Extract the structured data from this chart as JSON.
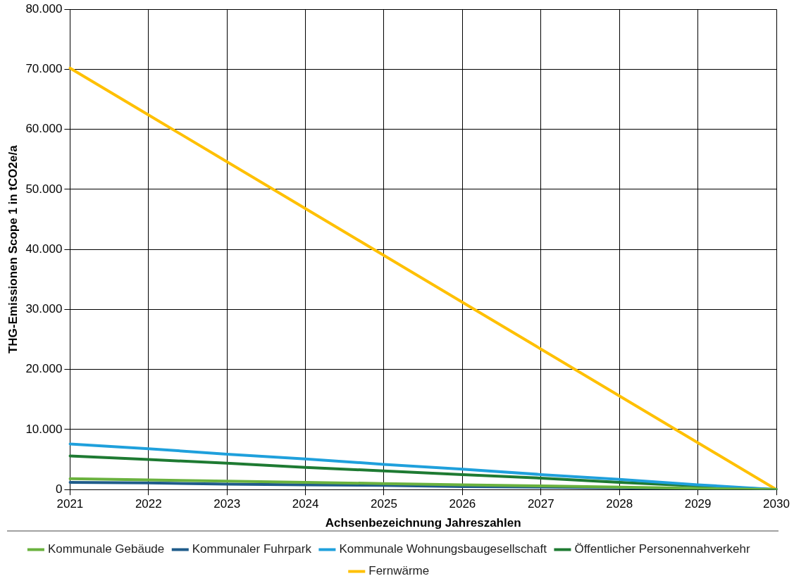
{
  "chart_data": {
    "type": "line",
    "xlabel": "Achsenbezeichnung Jahreszahlen",
    "ylabel": "THG-Emissionen Scope 1 in tCO2e/a",
    "categories": [
      "2021",
      "2022",
      "2023",
      "2024",
      "2025",
      "2026",
      "2027",
      "2028",
      "2029",
      "2030"
    ],
    "series": [
      {
        "name": "Kommunale Gebäude",
        "color": "#6ab23e",
        "values": [
          1800,
          1600,
          1400,
          1200,
          1000,
          800,
          600,
          400,
          200,
          0
        ]
      },
      {
        "name": "Kommunaler Fuhrpark",
        "color": "#1f5c8a",
        "values": [
          1200,
          1100,
          900,
          800,
          700,
          500,
          400,
          300,
          100,
          0
        ]
      },
      {
        "name": "Kommunale Wohnungsbaugesellschaft",
        "color": "#1fa0dc",
        "values": [
          7600,
          6800,
          5900,
          5100,
          4200,
          3400,
          2500,
          1700,
          800,
          0
        ]
      },
      {
        "name": "Öffentlicher Personennahverkehr",
        "color": "#1e7a32",
        "values": [
          5600,
          5000,
          4400,
          3700,
          3100,
          2500,
          1900,
          1200,
          600,
          0
        ]
      },
      {
        "name": "Fernwärme",
        "color": "#ffc000",
        "values": [
          70200,
          62400,
          54600,
          46800,
          39000,
          31200,
          23400,
          15600,
          7800,
          0
        ]
      }
    ],
    "ylim": [
      0,
      80000
    ],
    "yticks": [
      {
        "value": 0,
        "label": "0"
      },
      {
        "value": 10000,
        "label": "10.000"
      },
      {
        "value": 20000,
        "label": "20.000"
      },
      {
        "value": 30000,
        "label": "30.000"
      },
      {
        "value": 40000,
        "label": "40.000"
      },
      {
        "value": 50000,
        "label": "50.000"
      },
      {
        "value": 60000,
        "label": "60.000"
      },
      {
        "value": 70000,
        "label": "70.000"
      },
      {
        "value": 80000,
        "label": "80.000"
      }
    ],
    "grid": true,
    "legend": "bottom",
    "marker": "none",
    "line_style": "solid"
  }
}
